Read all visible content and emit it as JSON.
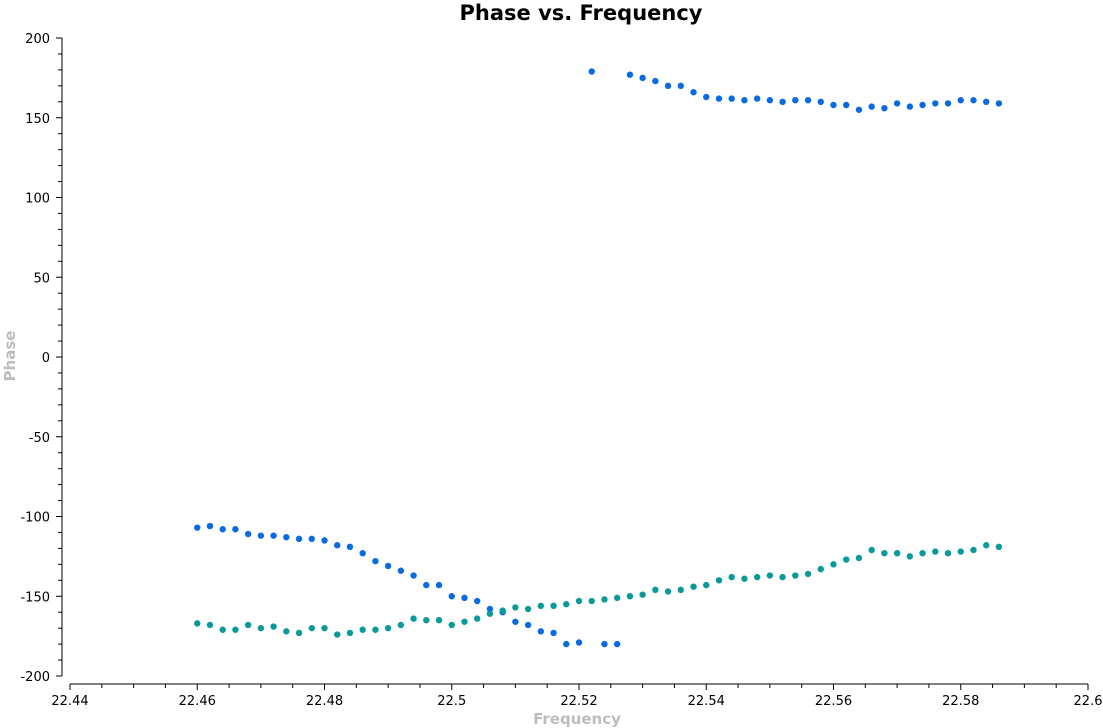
{
  "chart_data": {
    "type": "scatter",
    "title": "Phase vs. Frequency",
    "xlabel": "Frequency",
    "ylabel": "Phase",
    "xlim": [
      22.44,
      22.6
    ],
    "ylim": [
      -200,
      200
    ],
    "x_ticks": [
      "22.44",
      "22.46",
      "22.48",
      "22.5",
      "22.52",
      "22.54",
      "22.56",
      "22.58",
      "22.6"
    ],
    "y_ticks": [
      "200",
      "150",
      "100",
      "50",
      "0",
      "-50",
      "-100",
      "-150",
      "-200"
    ],
    "grid": false,
    "series": [
      {
        "color": "#0a6be0",
        "points": [
          [
            22.46,
            -107
          ],
          [
            22.462,
            -106
          ],
          [
            22.464,
            -108
          ],
          [
            22.466,
            -108
          ],
          [
            22.468,
            -111
          ],
          [
            22.47,
            -112
          ],
          [
            22.472,
            -112
          ],
          [
            22.474,
            -113
          ],
          [
            22.476,
            -114
          ],
          [
            22.478,
            -114
          ],
          [
            22.48,
            -115
          ],
          [
            22.482,
            -118
          ],
          [
            22.484,
            -119
          ],
          [
            22.486,
            -123
          ],
          [
            22.488,
            -128
          ],
          [
            22.49,
            -131
          ],
          [
            22.492,
            -134
          ],
          [
            22.494,
            -137
          ],
          [
            22.496,
            -143
          ],
          [
            22.498,
            -143
          ],
          [
            22.5,
            -150
          ],
          [
            22.502,
            -151
          ],
          [
            22.504,
            -153
          ],
          [
            22.506,
            -158
          ],
          [
            22.508,
            -160
          ],
          [
            22.51,
            -166
          ],
          [
            22.512,
            -168
          ],
          [
            22.514,
            -172
          ],
          [
            22.516,
            -173
          ],
          [
            22.518,
            -180
          ],
          [
            22.52,
            -179
          ],
          [
            22.524,
            -180
          ],
          [
            22.526,
            -180
          ],
          [
            22.522,
            179
          ],
          [
            22.528,
            177
          ],
          [
            22.53,
            175
          ],
          [
            22.532,
            173
          ],
          [
            22.534,
            170
          ],
          [
            22.536,
            170
          ],
          [
            22.538,
            166
          ],
          [
            22.54,
            163
          ],
          [
            22.542,
            162
          ],
          [
            22.544,
            162
          ],
          [
            22.546,
            161
          ],
          [
            22.548,
            162
          ],
          [
            22.55,
            161
          ],
          [
            22.552,
            160
          ],
          [
            22.554,
            161
          ],
          [
            22.556,
            161
          ],
          [
            22.558,
            160
          ],
          [
            22.56,
            158
          ],
          [
            22.562,
            158
          ],
          [
            22.564,
            155
          ],
          [
            22.566,
            157
          ],
          [
            22.568,
            156
          ],
          [
            22.57,
            159
          ],
          [
            22.572,
            157
          ],
          [
            22.574,
            158
          ],
          [
            22.576,
            159
          ],
          [
            22.578,
            159
          ],
          [
            22.58,
            161
          ],
          [
            22.582,
            161
          ],
          [
            22.584,
            160
          ],
          [
            22.586,
            159
          ]
        ]
      },
      {
        "color": "#0a9a9a",
        "points": [
          [
            22.46,
            -167
          ],
          [
            22.462,
            -168
          ],
          [
            22.464,
            -171
          ],
          [
            22.466,
            -171
          ],
          [
            22.468,
            -168
          ],
          [
            22.47,
            -170
          ],
          [
            22.472,
            -169
          ],
          [
            22.474,
            -172
          ],
          [
            22.476,
            -173
          ],
          [
            22.478,
            -170
          ],
          [
            22.48,
            -170
          ],
          [
            22.482,
            -174
          ],
          [
            22.484,
            -173
          ],
          [
            22.486,
            -171
          ],
          [
            22.488,
            -171
          ],
          [
            22.49,
            -170
          ],
          [
            22.492,
            -168
          ],
          [
            22.494,
            -164
          ],
          [
            22.496,
            -165
          ],
          [
            22.498,
            -165
          ],
          [
            22.5,
            -168
          ],
          [
            22.502,
            -166
          ],
          [
            22.504,
            -164
          ],
          [
            22.506,
            -161
          ],
          [
            22.508,
            -159
          ],
          [
            22.51,
            -157
          ],
          [
            22.512,
            -158
          ],
          [
            22.514,
            -156
          ],
          [
            22.516,
            -156
          ],
          [
            22.518,
            -155
          ],
          [
            22.52,
            -153
          ],
          [
            22.522,
            -153
          ],
          [
            22.524,
            -152
          ],
          [
            22.526,
            -151
          ],
          [
            22.528,
            -150
          ],
          [
            22.53,
            -149
          ],
          [
            22.532,
            -146
          ],
          [
            22.534,
            -147
          ],
          [
            22.536,
            -146
          ],
          [
            22.538,
            -144
          ],
          [
            22.54,
            -143
          ],
          [
            22.542,
            -140
          ],
          [
            22.544,
            -138
          ],
          [
            22.546,
            -139
          ],
          [
            22.548,
            -138
          ],
          [
            22.55,
            -137
          ],
          [
            22.552,
            -138
          ],
          [
            22.554,
            -137
          ],
          [
            22.556,
            -136
          ],
          [
            22.558,
            -133
          ],
          [
            22.56,
            -130
          ],
          [
            22.562,
            -127
          ],
          [
            22.564,
            -126
          ],
          [
            22.566,
            -121
          ],
          [
            22.568,
            -123
          ],
          [
            22.57,
            -123
          ],
          [
            22.572,
            -125
          ],
          [
            22.574,
            -123
          ],
          [
            22.576,
            -122
          ],
          [
            22.578,
            -123
          ],
          [
            22.58,
            -122
          ],
          [
            22.582,
            -121
          ],
          [
            22.584,
            -118
          ],
          [
            22.586,
            -119
          ]
        ]
      }
    ]
  }
}
